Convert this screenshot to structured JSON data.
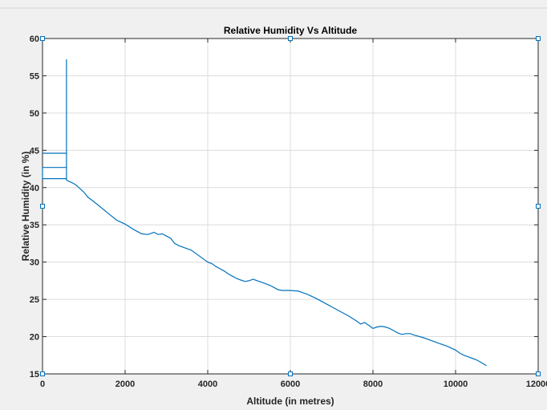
{
  "chart_data": {
    "type": "line",
    "title": "Relative Humidity Vs Altitude",
    "xlabel": "Altitude (in metres)",
    "ylabel": "Relative Humidity (in %)",
    "xlim": [
      0,
      12000
    ],
    "ylim": [
      15,
      60
    ],
    "xticks": [
      0,
      2000,
      4000,
      6000,
      8000,
      10000,
      12000
    ],
    "xtick_labels": [
      "0",
      "2000",
      "4000",
      "6000",
      "8000",
      "10000",
      "12000"
    ],
    "yticks": [
      15,
      20,
      25,
      30,
      35,
      40,
      45,
      50,
      55,
      60
    ],
    "ytick_labels": [
      "15",
      "20",
      "25",
      "30",
      "35",
      "40",
      "45",
      "50",
      "55",
      "60"
    ],
    "grid": true,
    "colors": {
      "line": "#0072bd",
      "background": "#f0f0f0",
      "axes": "#ffffff"
    },
    "series": [
      {
        "x": [
          0,
          580,
          580,
          0,
          0,
          580,
          580,
          0,
          0,
          580,
          580,
          580,
          580,
          700,
          800,
          900,
          1000,
          1100,
          1200,
          1400,
          1600,
          1800,
          2000,
          2200,
          2400,
          2550,
          2700,
          2800,
          2900,
          3000,
          3100,
          3200,
          3300,
          3400,
          3600,
          3800,
          4000,
          4100,
          4200,
          4300,
          4400,
          4500,
          4600,
          4700,
          4800,
          4900,
          5000,
          5100,
          5200,
          5300,
          5400,
          5500,
          5600,
          5700,
          5800,
          5900,
          6000,
          6200,
          6400,
          6600,
          6800,
          7000,
          7200,
          7400,
          7600,
          7700,
          7800,
          7900,
          8000,
          8100,
          8200,
          8300,
          8400,
          8500,
          8600,
          8700,
          8800,
          8900,
          9000,
          9200,
          9400,
          9600,
          9800,
          10000,
          10100,
          10200,
          10300,
          10400,
          10500,
          10600,
          10750
        ],
        "y": [
          44.6,
          44.6,
          42.7,
          42.7,
          41.2,
          41.2,
          44.6,
          44.6,
          44.6,
          44.6,
          57.2,
          42.7,
          41.0,
          40.7,
          40.4,
          39.9,
          39.4,
          38.7,
          38.3,
          37.4,
          36.5,
          35.6,
          35.1,
          34.4,
          33.8,
          33.7,
          34.0,
          33.7,
          33.8,
          33.5,
          33.2,
          32.5,
          32.2,
          32.0,
          31.6,
          30.8,
          30.0,
          29.8,
          29.4,
          29.1,
          28.8,
          28.4,
          28.1,
          27.8,
          27.6,
          27.4,
          27.5,
          27.7,
          27.5,
          27.3,
          27.1,
          26.9,
          26.6,
          26.3,
          26.2,
          26.2,
          26.2,
          26.1,
          25.7,
          25.2,
          24.6,
          24.0,
          23.4,
          22.8,
          22.1,
          21.7,
          21.9,
          21.5,
          21.1,
          21.3,
          21.4,
          21.3,
          21.1,
          20.8,
          20.5,
          20.3,
          20.4,
          20.4,
          20.2,
          19.9,
          19.5,
          19.1,
          18.7,
          18.2,
          17.8,
          17.5,
          17.3,
          17.1,
          16.9,
          16.6,
          16.1
        ]
      }
    ]
  }
}
